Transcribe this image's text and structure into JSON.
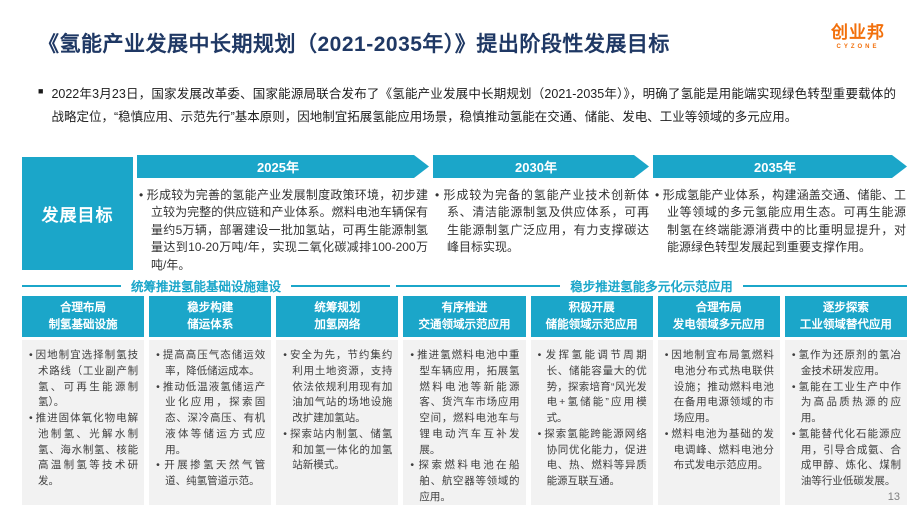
{
  "page": {
    "title": "《氢能产业发展中长期规划（2021-2035年）》提出阶段性发展目标",
    "page_number": "13"
  },
  "logo": {
    "name": "创业邦",
    "subtitle": "CYZONE"
  },
  "intro": {
    "bullet": "■",
    "text": "2022年3月23日，国家发展改革委、国家能源局联合发布了《氢能产业发展中长期规划（2021-2035年）》，明确了氢能是用能端实现绿色转型重要载体的战略定位，“稳慎应用、示范先行”基本原则，因地制宜拓展氢能应用场景，稳慎推动氢能在交通、储能、发电、工业等领域的多元应用。"
  },
  "timeline": {
    "sidebar_label": "发展目标",
    "stages": [
      {
        "year": "2025年",
        "goal": "形成较为完善的氢能产业发展制度政策环境，初步建立较为完整的供应链和产业体系。燃料电池车辆保有量约5万辆，部署建设一批加氢站，可再生能源制氢量达到10-20万吨/年，实现二氧化碳减排100-200万吨/年。"
      },
      {
        "year": "2030年",
        "goal": "形成较为完备的氢能产业技术创新体系、清洁能源制氢及供应体系，可再生能源制氢广泛应用，有力支撑碳达峰目标实现。"
      },
      {
        "year": "2035年",
        "goal": "形成氢能产业体系，构建涵盖交通、储能、工业等领域的多元氢能应用生态。可再生能源制氢在终端能源消费中的比重明显提升，对能源绿色转型发展起到重要支撑作用。"
      }
    ]
  },
  "sections": [
    {
      "title": "统筹推进氢能基础设施建设"
    },
    {
      "title": "稳步推进氢能多元化示范应用"
    }
  ],
  "columns": [
    {
      "header_line1": "合理布局",
      "header_line2": "制氢基础设施",
      "bullets": [
        "因地制宜选择制氢技术路线（工业副产制氢、可再生能源制氢）。",
        "推进固体氧化物电解池制氢、光解水制氢、海水制氢、核能高温制氢等技术研发。"
      ]
    },
    {
      "header_line1": "稳步构建",
      "header_line2": "储运体系",
      "bullets": [
        "提高高压气态储运效率，降低储运成本。",
        "推动低温液氢储运产业化应用，探索固态、深冷高压、有机液体等储运方式应用。",
        "开展掺氢天然气管道、纯氢管道示范。"
      ]
    },
    {
      "header_line1": "统筹规划",
      "header_line2": "加氢网络",
      "bullets": [
        "安全为先，节约集约利用土地资源，支持依法依规利用现有加油加气站的场地设施改扩建加氢站。",
        "探索站内制氢、储氢和加氢一体化的加氢站新模式。"
      ]
    },
    {
      "header_line1": "有序推进",
      "header_line2": "交通领域示范应用",
      "bullets": [
        "推进氢燃料电池中重型车辆应用，拓展氢燃料电池等新能源客、货汽车市场应用空间，燃料电池车与锂电动汽车互补发展。",
        "探索燃料电池在船舶、航空器等领域的应用。"
      ]
    },
    {
      "header_line1": "积极开展",
      "header_line2": "储能领域示范应用",
      "bullets": [
        "发挥氢能调节周期长、储能容量大的优势，探索培育“风光发电+氢储能”应用模式。",
        "探索氢能跨能源网络协同优化能力，促进电、热、燃料等异质能源互联互通。"
      ]
    },
    {
      "header_line1": "合理布局",
      "header_line2": "发电领域多元应用",
      "bullets": [
        "因地制宜布局氢燃料电池分布式热电联供设施；推动燃料电池在备用电源领域的市场应用。",
        "燃料电池为基础的发电调峰、燃料电池分布式发电示范应用。"
      ]
    },
    {
      "header_line1": "逐步探索",
      "header_line2": "工业领域替代应用",
      "bullets": [
        "氢作为还原剂的氢冶金技术研发应用。",
        "氢能在工业生产中作为高品质热源的应用。",
        "氢能替代化石能源应用，引导合成氨、合成甲醇、炼化、煤制油等行业低碳发展。"
      ]
    }
  ],
  "colors": {
    "accent_teal": "#1ba6c9",
    "title_navy": "#1f3864",
    "logo_orange": "#f2700c",
    "panel_gray": "#f2f2f2"
  }
}
